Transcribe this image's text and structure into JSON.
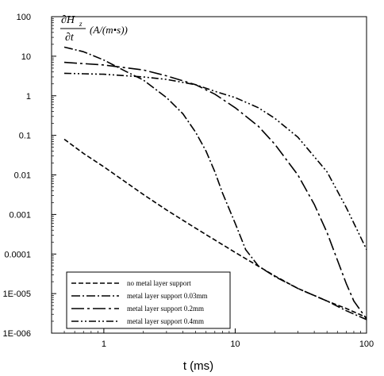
{
  "chart_data": {
    "type": "line",
    "xscale": "log",
    "yscale": "log",
    "xlim": [
      0.4,
      100
    ],
    "ylim": [
      1e-06,
      100
    ],
    "xlabel": "t (ms)",
    "ylabel": {
      "numerator": "∂H",
      "subscript": "z",
      "denominator": "∂t",
      "units": "(A/(m•s))"
    },
    "x_ticks": [
      {
        "value": 1,
        "label": "1"
      },
      {
        "value": 10,
        "label": "10"
      },
      {
        "value": 100,
        "label": "100"
      }
    ],
    "y_ticks": [
      {
        "value": 100,
        "label": "100"
      },
      {
        "value": 10,
        "label": "10"
      },
      {
        "value": 1,
        "label": "1"
      },
      {
        "value": 0.1,
        "label": "0.1"
      },
      {
        "value": 0.01,
        "label": "0.01"
      },
      {
        "value": 0.001,
        "label": "0.001"
      },
      {
        "value": 0.0001,
        "label": "0.0001"
      },
      {
        "value": 1e-05,
        "label": "1E-005"
      },
      {
        "value": 1e-06,
        "label": "1E-006"
      }
    ],
    "legend_position": "bottom-left",
    "grid": false,
    "series": [
      {
        "name": "no metal layer support",
        "dash": "6,3",
        "x": [
          0.5,
          0.7,
          1,
          2,
          3,
          5,
          10,
          20,
          30,
          50,
          70,
          100
        ],
        "y": [
          0.08,
          0.035,
          0.016,
          0.0032,
          0.0013,
          0.00045,
          0.00011,
          2.8e-05,
          1.35e-05,
          6.5e-06,
          4.2e-06,
          2.5e-06
        ]
      },
      {
        "name": "metal layer support 0.03mm",
        "dash": "11,3,2,3",
        "x": [
          0.5,
          0.7,
          1,
          1.5,
          2,
          3,
          4,
          5,
          6,
          7,
          8,
          10,
          12,
          15,
          20,
          30,
          50,
          70,
          100
        ],
        "y": [
          17,
          13,
          8,
          4,
          2.5,
          0.9,
          0.35,
          0.12,
          0.04,
          0.012,
          0.0035,
          0.0006,
          0.00013,
          5e-05,
          2.7e-05,
          1.35e-05,
          6.5e-06,
          3.7e-06,
          2.2e-06
        ]
      },
      {
        "name": "metal layer support 0.2mm",
        "dash": "16,4,3,4",
        "x": [
          0.5,
          0.7,
          1,
          2,
          3,
          5,
          7,
          10,
          15,
          20,
          30,
          40,
          50,
          60,
          70,
          80,
          100
        ],
        "y": [
          7,
          6.5,
          6,
          4.5,
          3.2,
          1.9,
          1.1,
          0.5,
          0.17,
          0.06,
          0.01,
          0.0018,
          0.00035,
          7e-05,
          1.8e-05,
          6.5e-06,
          2.3e-06
        ]
      },
      {
        "name": "metal layer support 0.4mm",
        "dash": "9,3,2,3,2,3",
        "x": [
          0.5,
          0.7,
          1,
          2,
          3,
          5,
          7,
          10,
          15,
          20,
          30,
          50,
          70,
          85,
          100
        ],
        "y": [
          3.7,
          3.6,
          3.5,
          3,
          2.6,
          1.9,
          1.3,
          0.9,
          0.5,
          0.27,
          0.09,
          0.012,
          0.0015,
          0.0004,
          0.00013
        ]
      }
    ]
  }
}
